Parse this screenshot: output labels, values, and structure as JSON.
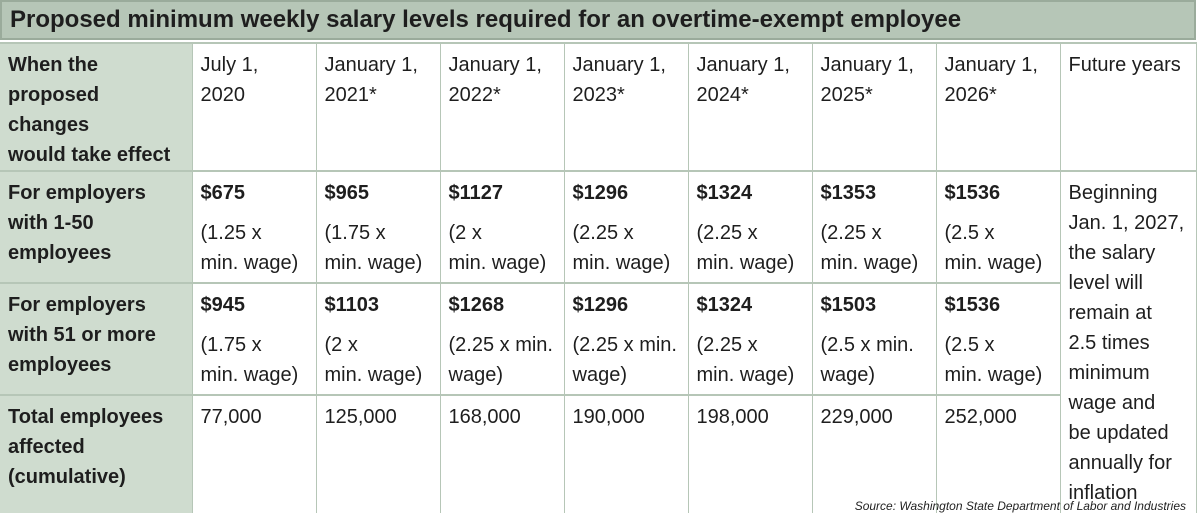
{
  "title": "Proposed minimum weekly salary levels required for an overtime-exempt employee",
  "source": "Source: Washington State Department of Labor and Industries",
  "chart_data": {
    "type": "table",
    "header_row": {
      "label": "When the proposed changes would take effect",
      "label_lines": [
        "When the",
        "proposed changes",
        "would take effect"
      ],
      "dates": [
        [
          "July 1,",
          "2020"
        ],
        [
          "January 1,",
          "2021*"
        ],
        [
          "January 1,",
          "2022*"
        ],
        [
          "January 1,",
          "2023*"
        ],
        [
          "January 1,",
          "2024*"
        ],
        [
          "January 1,",
          "2025*"
        ],
        [
          "January 1,",
          "2026*"
        ],
        [
          "Future years"
        ]
      ]
    },
    "rows": [
      {
        "label_lines": [
          "For employers",
          "with 1-50",
          "employees"
        ],
        "cells": [
          {
            "amount": "$675",
            "note": [
              "(1.25 x",
              "min. wage)"
            ]
          },
          {
            "amount": "$965",
            "note": [
              "(1.75 x",
              "min. wage)"
            ]
          },
          {
            "amount": "$1127",
            "note": [
              "(2 x",
              "min. wage)"
            ]
          },
          {
            "amount": "$1296",
            "note": [
              "(2.25 x",
              "min. wage)"
            ]
          },
          {
            "amount": "$1324",
            "note": [
              "(2.25 x",
              "min. wage)"
            ]
          },
          {
            "amount": "$1353",
            "note": [
              "(2.25 x",
              "min. wage)"
            ]
          },
          {
            "amount": "$1536",
            "note": [
              "(2.5 x",
              "min. wage)"
            ]
          }
        ]
      },
      {
        "label_lines": [
          "For employers",
          "with 51 or more",
          "employees"
        ],
        "cells": [
          {
            "amount": "$945",
            "note": [
              "(1.75 x",
              "min. wage)"
            ]
          },
          {
            "amount": "$1103",
            "note": [
              "(2 x",
              "min. wage)"
            ]
          },
          {
            "amount": "$1268",
            "note": [
              "(2.25 x min.",
              "wage)"
            ]
          },
          {
            "amount": "$1296",
            "note": [
              "(2.25 x min.",
              "wage)"
            ]
          },
          {
            "amount": "$1324",
            "note": [
              "(2.25 x",
              "min. wage)"
            ]
          },
          {
            "amount": "$1503",
            "note": [
              "(2.5 x min.",
              "wage)"
            ]
          },
          {
            "amount": "$1536",
            "note": [
              "(2.5 x",
              "min. wage)"
            ]
          }
        ]
      },
      {
        "label_lines": [
          "Total employees",
          "affected",
          "(cumulative)"
        ],
        "cells": [
          {
            "amount": "77,000"
          },
          {
            "amount": "125,000"
          },
          {
            "amount": "168,000"
          },
          {
            "amount": "190,000"
          },
          {
            "amount": "198,000"
          },
          {
            "amount": "229,000"
          },
          {
            "amount": "252,000"
          }
        ]
      }
    ],
    "future_note_lines": [
      "Beginning",
      "Jan. 1, 2027,",
      "the salary",
      "level will",
      "remain at",
      "2.5 times",
      "minimum",
      "wage and",
      "be updated",
      "annually for",
      "inflation"
    ]
  }
}
